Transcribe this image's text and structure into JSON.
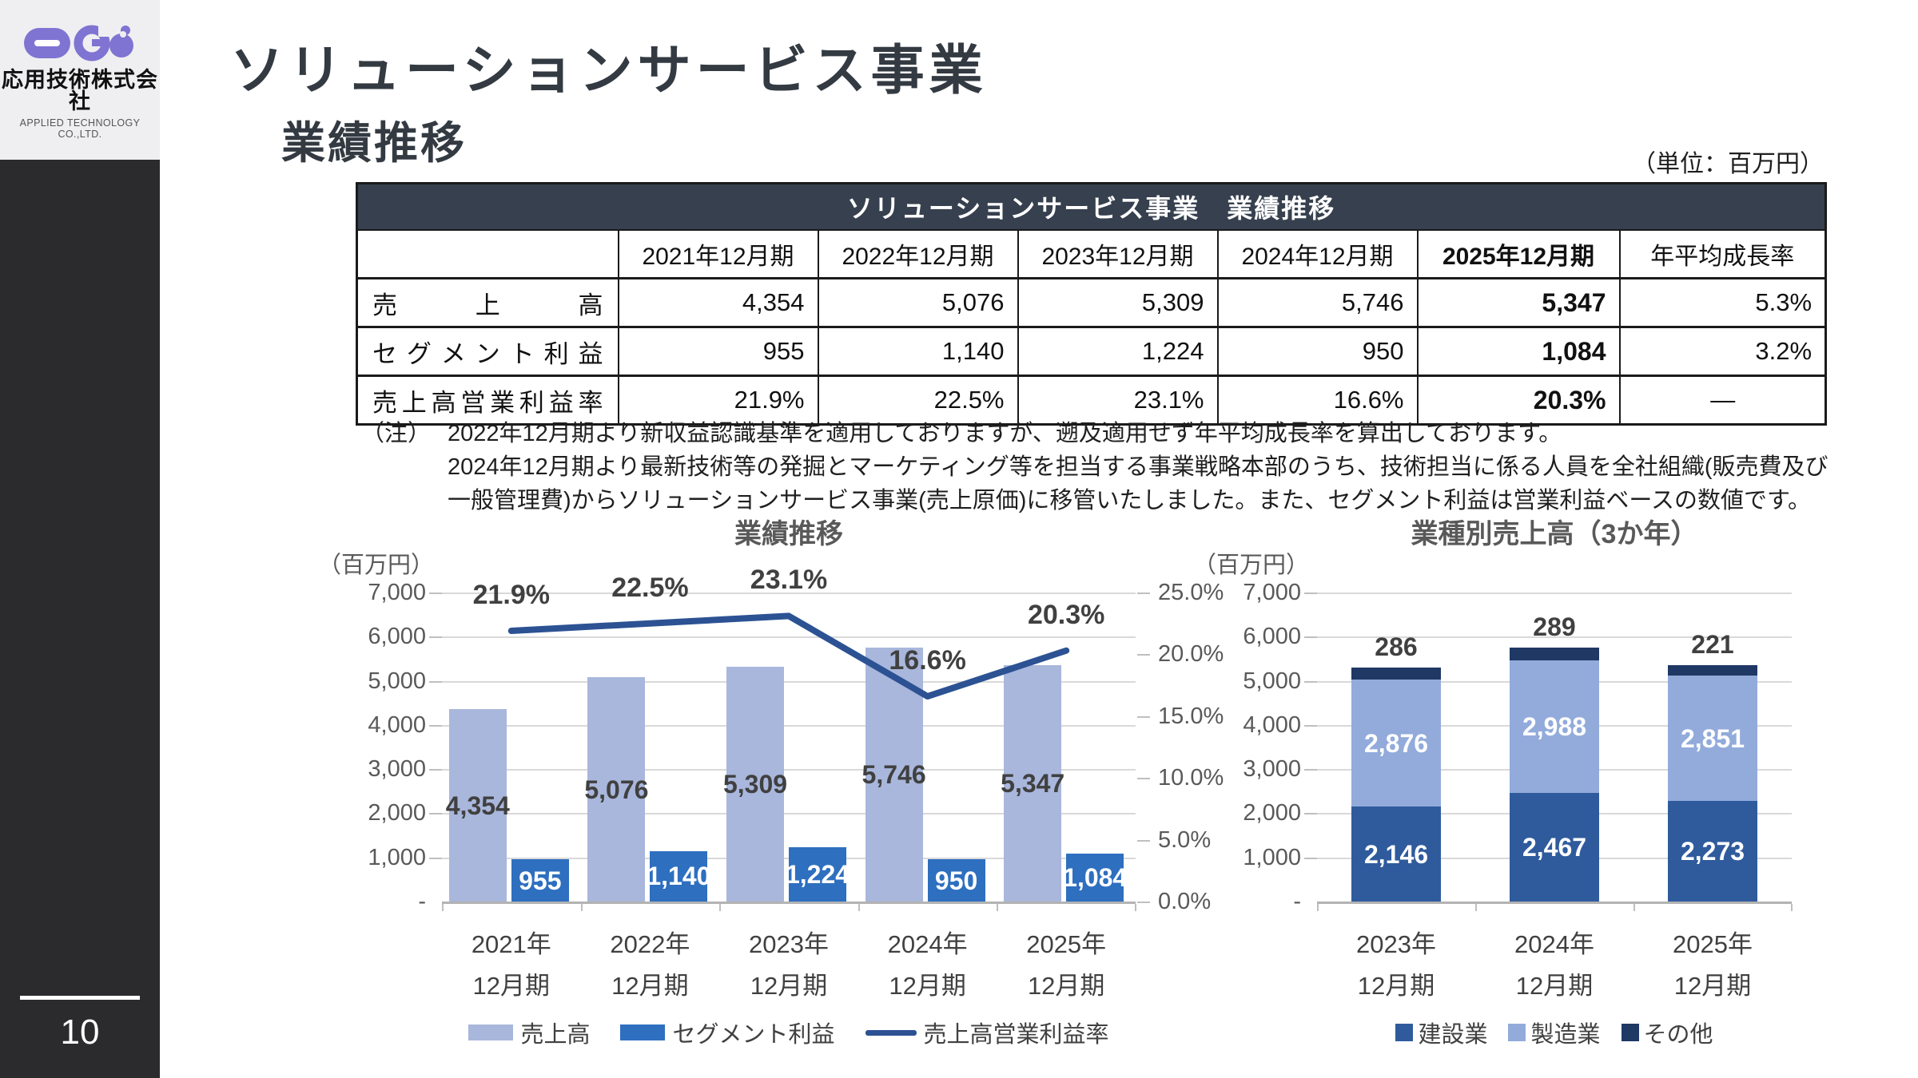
{
  "sidebar": {
    "company_name": "応用技術株式会社",
    "company_name_en": "APPLIED TECHNOLOGY CO.,LTD.",
    "page_number": "10",
    "logo_color": "#7f74d2"
  },
  "header": {
    "title": "ソリューションサービス事業",
    "subtitle": "業績推移",
    "unit_note": "（単位：百万円）"
  },
  "table": {
    "title": "ソリューションサービス事業　業績推移",
    "columns": [
      "",
      "2021年12月期",
      "2022年12月期",
      "2023年12月期",
      "2024年12月期",
      "2025年12月期",
      "年平均成長率"
    ],
    "emphasis_column": "2025年12月期",
    "rows": [
      {
        "label": "売上高",
        "values": [
          "4,354",
          "5,076",
          "5,309",
          "5,746",
          "5,347",
          "5.3%"
        ]
      },
      {
        "label": "セグメント利益",
        "values": [
          "955",
          "1,140",
          "1,224",
          "950",
          "1,084",
          "3.2%"
        ]
      },
      {
        "label": "売上高営業利益率",
        "values": [
          "21.9%",
          "22.5%",
          "23.1%",
          "16.6%",
          "20.3%",
          "―"
        ]
      }
    ],
    "header_bg": "#36404e"
  },
  "notes": {
    "marker": "（注）",
    "lines": [
      "2022年12月期より新収益認識基準を適用しておりますが、遡及適用せず年平均成長率を算出しております。",
      "2024年12月期より最新技術等の発掘とマーケティング等を担当する事業戦略本部のうち、技術担当に係る人員を全社組織(販売費及び",
      "一般管理費)からソリューションサービス事業(売上原価)に移管いたしました。また、セグメント利益は営業利益ベースの数値です。"
    ]
  },
  "chart_data": [
    {
      "id": "performance-trend",
      "type": "bar",
      "subtype": "grouped-bar-with-line",
      "title": "業績推移",
      "unit_label": "（百万円）",
      "categories": [
        [
          "2021年",
          "12月期"
        ],
        [
          "2022年",
          "12月期"
        ],
        [
          "2023年",
          "12月期"
        ],
        [
          "2024年",
          "12月期"
        ],
        [
          "2025年",
          "12月期"
        ]
      ],
      "series": [
        {
          "name": "売上高",
          "kind": "bar",
          "color": "#a9b7dc",
          "values": [
            4354,
            5076,
            5309,
            5746,
            5347
          ],
          "labels": [
            "4,354",
            "5,076",
            "5,309",
            "5,746",
            "5,347"
          ],
          "label_color": "#404040"
        },
        {
          "name": "セグメント利益",
          "kind": "bar",
          "color": "#2e6fbf",
          "values": [
            955,
            1140,
            1224,
            950,
            1084
          ],
          "labels": [
            "955",
            "1,140",
            "1,224",
            "950",
            "1,084"
          ],
          "label_color": "#ffffff"
        },
        {
          "name": "売上高営業利益率",
          "kind": "line",
          "axis": "right",
          "color": "#2c5293",
          "values": [
            21.9,
            22.5,
            23.1,
            16.6,
            20.3
          ],
          "labels": [
            "21.9%",
            "22.5%",
            "23.1%",
            "16.6%",
            "20.3%"
          ],
          "label_color": "#404040"
        }
      ],
      "left_axis": {
        "min": 0,
        "max": 7000,
        "step": 1000,
        "tick_labels": [
          "7,000",
          "6,000",
          "5,000",
          "4,000",
          "3,000",
          "2,000",
          "1,000",
          "-"
        ]
      },
      "right_axis": {
        "min": 0,
        "max": 25,
        "step": 5,
        "tick_labels": [
          "25.0%",
          "20.0%",
          "15.0%",
          "10.0%",
          "5.0%",
          "0.0%"
        ]
      },
      "grid": true,
      "legend_position": "bottom"
    },
    {
      "id": "sales-by-industry",
      "type": "bar",
      "subtype": "stacked-bar",
      "title": "業種別売上高（3か年）",
      "unit_label": "（百万円）",
      "categories": [
        [
          "2023年",
          "12月期"
        ],
        [
          "2024年",
          "12月期"
        ],
        [
          "2025年",
          "12月期"
        ]
      ],
      "series": [
        {
          "name": "建設業",
          "color": "#2f5b9d",
          "values": [
            2146,
            2467,
            2273
          ],
          "labels": [
            "2,146",
            "2,467",
            "2,273"
          ],
          "label_color": "#ffffff",
          "label_position": "inside"
        },
        {
          "name": "製造業",
          "color": "#92abdb",
          "values": [
            2876,
            2988,
            2851
          ],
          "labels": [
            "2,876",
            "2,988",
            "2,851"
          ],
          "label_color": "#ffffff",
          "label_position": "inside"
        },
        {
          "name": "その他",
          "color": "#1f3864",
          "values": [
            286,
            289,
            221
          ],
          "labels": [
            "286",
            "289",
            "221"
          ],
          "label_color": "#404040",
          "label_position": "above"
        }
      ],
      "left_axis": {
        "min": 0,
        "max": 7000,
        "step": 1000,
        "tick_labels": [
          "7,000",
          "6,000",
          "5,000",
          "4,000",
          "3,000",
          "2,000",
          "1,000",
          "-"
        ]
      },
      "grid": true,
      "legend_position": "bottom"
    }
  ]
}
